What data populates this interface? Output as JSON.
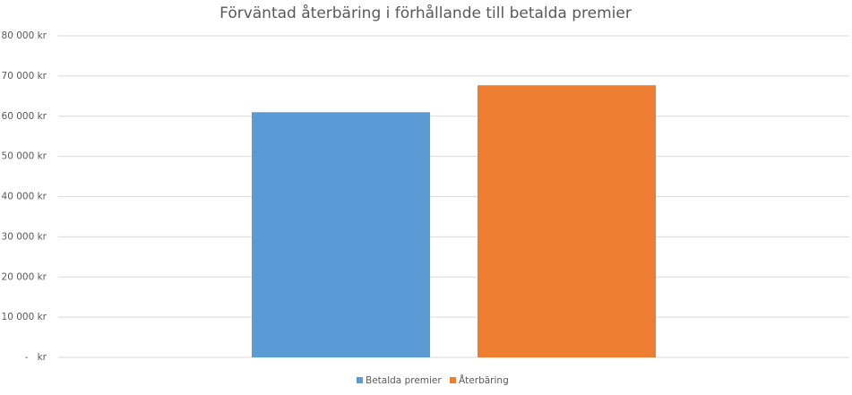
{
  "chart_data": {
    "type": "bar",
    "title": "Förväntad återbäring i förhållande till betalda premier",
    "categories": [
      null
    ],
    "series": [
      {
        "name": "Betalda premier",
        "color": "#5b9bd5",
        "values": [
          61000
        ]
      },
      {
        "name": "Återbäring",
        "color": "#ed7d31",
        "values": [
          67700
        ]
      }
    ],
    "ylim": [
      0,
      80000
    ],
    "yticks": [
      {
        "value": 0,
        "label": "-   kr"
      },
      {
        "value": 10000,
        "label": "10 000 kr"
      },
      {
        "value": 20000,
        "label": "20 000 kr"
      },
      {
        "value": 30000,
        "label": "30 000 kr"
      },
      {
        "value": 40000,
        "label": "40 000 kr"
      },
      {
        "value": 50000,
        "label": "50 000 kr"
      },
      {
        "value": 60000,
        "label": "60 000 kr"
      },
      {
        "value": 70000,
        "label": "70 000 kr"
      },
      {
        "value": 80000,
        "label": "80 000 kr"
      }
    ],
    "grid": true,
    "legend": "bottom"
  }
}
